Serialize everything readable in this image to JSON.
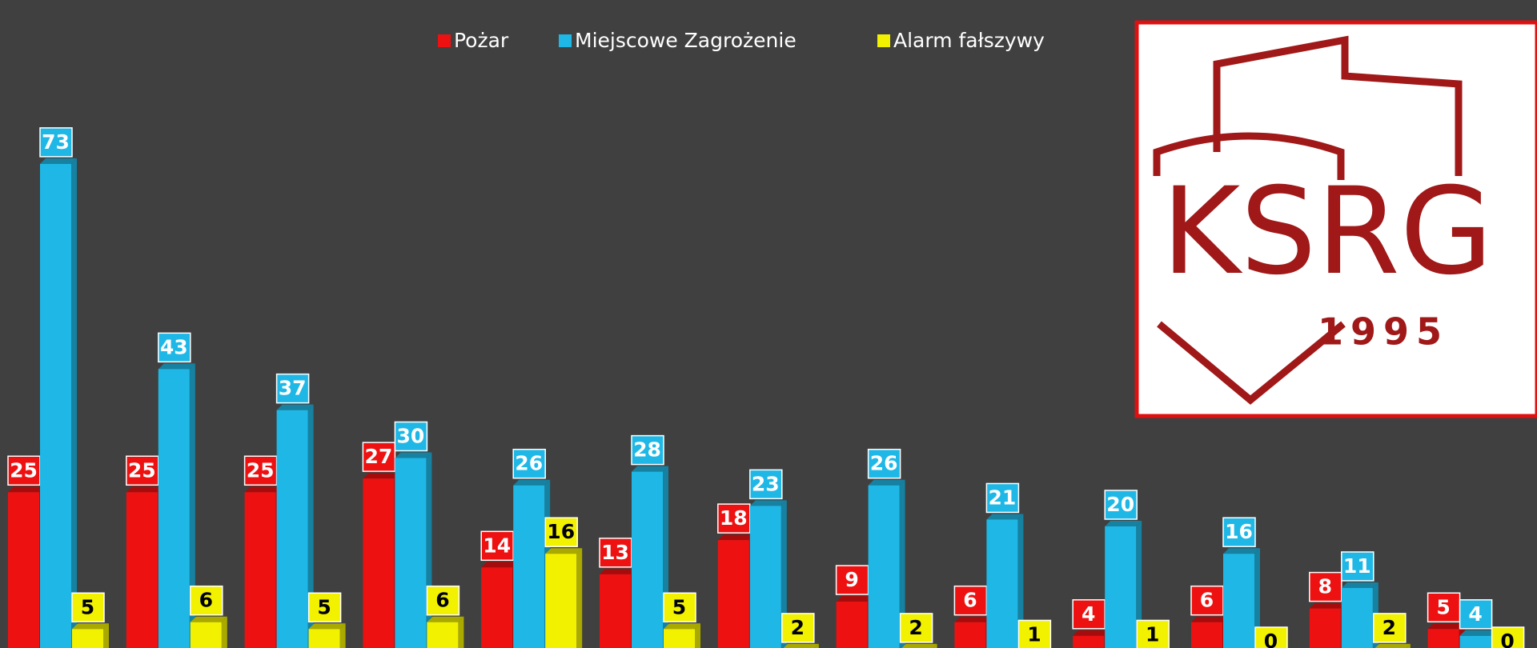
{
  "chart_data": {
    "type": "bar",
    "series": [
      {
        "name": "Pożar",
        "color": "#ee1111",
        "values": [
          25,
          25,
          25,
          27,
          14,
          13,
          18,
          9,
          6,
          4,
          6,
          8,
          5
        ]
      },
      {
        "name": "Miejscowe Zagrożenie",
        "color": "#1fb8e6",
        "values": [
          73,
          43,
          37,
          30,
          26,
          28,
          23,
          26,
          21,
          20,
          16,
          11,
          4
        ]
      },
      {
        "name": "Alarm fałszywy",
        "color": "#f2f200",
        "values": [
          5,
          6,
          5,
          6,
          16,
          5,
          2,
          2,
          1,
          1,
          0,
          2,
          0
        ]
      }
    ]
  },
  "logo": {
    "text": "KSRG",
    "year": "1995"
  }
}
